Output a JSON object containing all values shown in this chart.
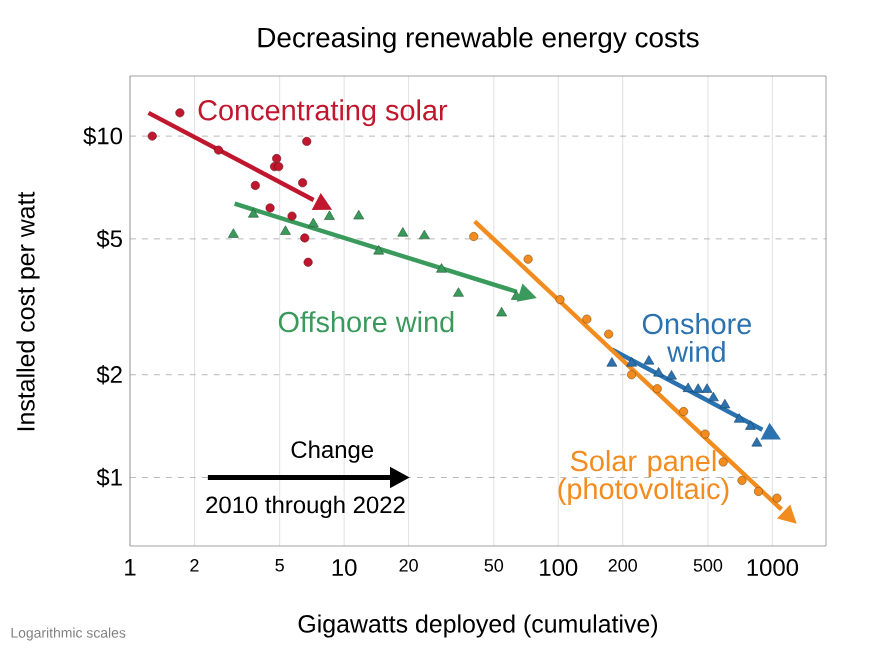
{
  "chart_data": {
    "type": "scatter",
    "title": "Decreasing renewable energy costs",
    "xlabel": "Gigawatts deployed (cumulative)",
    "ylabel": "Installed cost per watt",
    "log": "xy",
    "grid": true,
    "xlim": [
      1,
      1780
    ],
    "ylim": [
      0.63,
      15
    ],
    "xticks": [
      1,
      2,
      5,
      10,
      20,
      50,
      100,
      200,
      500,
      1000
    ],
    "yticks": [
      {
        "value": 1,
        "label": "$1"
      },
      {
        "value": 2,
        "label": "$2"
      },
      {
        "value": 5,
        "label": "$5"
      },
      {
        "value": 10,
        "label": "$10"
      }
    ],
    "annotations": [
      "Change",
      "2010 through 2022",
      "Logarithmic scales"
    ],
    "series": [
      {
        "name": "Concentrating solar",
        "marker": "circle",
        "color": "#c0172e",
        "x": [
          1.27,
          1.71,
          2.59,
          3.85,
          4.51,
          4.73,
          4.84,
          4.95,
          5.71,
          6.4,
          6.55,
          6.69,
          6.79
        ],
        "values": [
          10,
          11.7,
          9.1,
          7.17,
          6.16,
          8.14,
          8.6,
          8.14,
          5.83,
          7.3,
          5.03,
          9.65,
          4.27
        ]
      },
      {
        "name": "Offshore wind",
        "marker": "triangle",
        "color": "#3a9a5b",
        "x": [
          3.04,
          3.77,
          5.32,
          7.18,
          8.54,
          11.7,
          14.5,
          18.8,
          23.7,
          28.5,
          34.2,
          54.4,
          63.7
        ],
        "values": [
          5.15,
          5.9,
          5.25,
          5.53,
          5.81,
          5.83,
          4.6,
          5.19,
          5.1,
          4.07,
          3.46,
          3.03,
          3.39
        ]
      },
      {
        "name": "Onshore wind",
        "marker": "triangle",
        "color": "#2a72b0",
        "x": [
          178,
          220,
          265,
          294,
          338,
          404,
          450,
          495,
          530,
          600,
          700,
          790,
          846
        ],
        "values": [
          2.16,
          2.16,
          2.19,
          2.02,
          1.98,
          1.82,
          1.81,
          1.81,
          1.71,
          1.63,
          1.48,
          1.41,
          1.26
        ]
      },
      {
        "name": "Solar panel (photovoltaic)",
        "marker": "circle",
        "color": "#f28c1e",
        "x": [
          40.3,
          72.3,
          101.9,
          136,
          172,
          220,
          290,
          385,
          485,
          589,
          721,
          861,
          1050
        ],
        "values": [
          5.08,
          4.36,
          3.32,
          2.91,
          2.63,
          2.0,
          1.82,
          1.56,
          1.34,
          1.11,
          0.98,
          0.91,
          0.87
        ]
      },
      {
        "type": "line",
        "marker": "none",
        "line_style": "solid",
        "color": "#c0172e",
        "x": [
          1.22,
          7.2
        ],
        "values": [
          11.7,
          6.5
        ]
      },
      {
        "type": "line",
        "marker": "none",
        "line_style": "solid",
        "color": "#3a9a5b",
        "x": [
          3.08,
          64
        ],
        "values": [
          6.34,
          3.5
        ]
      },
      {
        "type": "line",
        "marker": "none",
        "line_style": "solid",
        "color": "#2a72b0",
        "x": [
          178,
          898
        ],
        "values": [
          2.37,
          1.38
        ]
      },
      {
        "type": "line",
        "marker": "none",
        "line_style": "solid",
        "color": "#f28c1e",
        "x": [
          40.7,
          1102
        ],
        "values": [
          5.63,
          0.806
        ]
      }
    ]
  }
}
